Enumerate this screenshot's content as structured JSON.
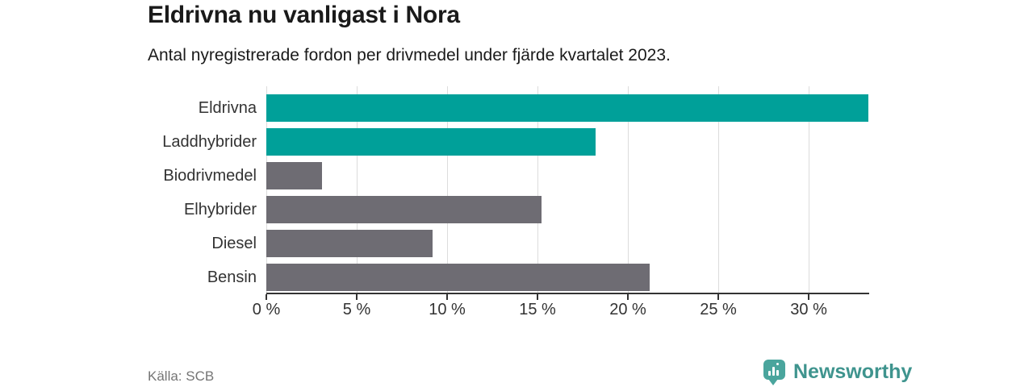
{
  "header": {
    "title": "Eldrivna nu vanligast i Nora",
    "subtitle": "Antal nyregistrerade fordon per drivmedel under fjärde kvartalet 2023."
  },
  "footer": {
    "source": "Källa: SCB",
    "brand": "Newsworthy",
    "brand_icon": "bar-chart-pin-icon"
  },
  "colors": {
    "highlight_bar": "#00a099",
    "default_bar": "#6e6c73",
    "gridline": "#dcdcdc",
    "axis": "#333333",
    "text": "#1a1a1a",
    "muted_text": "#757575",
    "brand_text": "#3f948e",
    "brand_badge": "#4aa59d"
  },
  "chart_data": {
    "type": "bar",
    "orientation": "horizontal",
    "title": "Eldrivna nu vanligast i Nora",
    "subtitle": "Antal nyregistrerade fordon per drivmedel under fjärde kvartalet 2023.",
    "categories": [
      "Eldrivna",
      "Laddhybrider",
      "Biodrivmedel",
      "Elhybrider",
      "Diesel",
      "Bensin"
    ],
    "values": [
      33.3,
      18.2,
      3.1,
      15.2,
      9.2,
      21.2
    ],
    "unit": "%",
    "xlim": [
      0,
      33.3
    ],
    "x_tick_values": [
      0,
      5,
      10,
      15,
      20,
      25,
      30
    ],
    "x_ticks": [
      "0 %",
      "5 %",
      "10 %",
      "15 %",
      "20 %",
      "25 %",
      "30 %"
    ],
    "bar_colors": [
      "#00a099",
      "#00a099",
      "#6e6c73",
      "#6e6c73",
      "#6e6c73",
      "#6e6c73"
    ],
    "grid": "vertical",
    "legend": "none",
    "xlabel": "",
    "ylabel": ""
  }
}
